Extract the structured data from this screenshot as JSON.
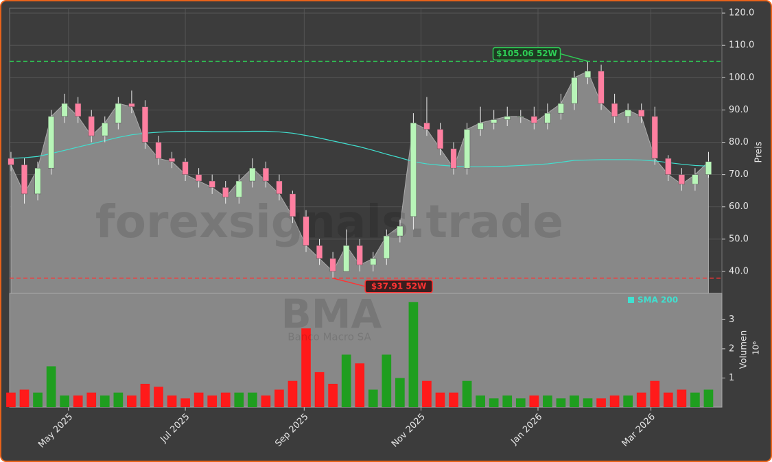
{
  "chart_data": [
    {
      "type": "candlestick",
      "watermark": "forexsignals.trade",
      "symbol": "BMA",
      "company": "Banco Macro SA",
      "y_label": "Preis",
      "x": [
        0,
        1,
        2,
        3,
        4,
        5,
        6,
        7,
        8,
        9,
        10,
        11,
        12,
        13,
        14,
        15,
        16,
        17,
        18,
        19,
        20,
        21,
        22,
        23,
        24,
        25,
        26,
        27,
        28,
        29,
        30,
        31,
        32,
        33,
        34,
        35,
        36,
        37,
        38,
        39,
        40,
        41,
        42,
        43,
        44,
        45,
        46,
        47,
        48,
        49,
        50,
        51,
        52
      ],
      "xlim": [
        -0.1,
        53.0
      ],
      "open": [
        75,
        73,
        64,
        72,
        88,
        92,
        88,
        82,
        86,
        92,
        91,
        80,
        75,
        74,
        70,
        68,
        66,
        63,
        68,
        72,
        68,
        64,
        57,
        48,
        44,
        40,
        48,
        42,
        44,
        51,
        57,
        86,
        84,
        78,
        72,
        84,
        86,
        87,
        88,
        88,
        86,
        89,
        92,
        100,
        102,
        92,
        88,
        90,
        88,
        75,
        70,
        67,
        70
      ],
      "high": [
        77,
        75,
        74,
        90,
        95,
        94,
        90,
        88,
        94,
        96,
        93,
        82,
        77,
        75,
        72,
        70,
        68,
        70,
        75,
        74,
        70,
        65,
        59,
        50,
        46,
        53,
        50,
        46,
        53,
        56,
        89,
        94,
        86,
        80,
        86,
        91,
        90,
        91,
        90,
        91,
        92,
        95,
        102,
        105.06,
        104,
        95,
        92,
        92,
        91,
        76,
        72,
        72,
        77
      ],
      "low": [
        71,
        61,
        62,
        70,
        86,
        86,
        80,
        80,
        84,
        89,
        78,
        73,
        72,
        68,
        66,
        64,
        61,
        61,
        66,
        66,
        62,
        55,
        46,
        42,
        37.91,
        40,
        40,
        40,
        42,
        49,
        53,
        82,
        76,
        70,
        70,
        82,
        84,
        85,
        86,
        84,
        84,
        87,
        90,
        98,
        90,
        86,
        86,
        86,
        73,
        68,
        65,
        65,
        69
      ],
      "close": [
        73,
        64,
        72,
        88,
        92,
        88,
        82,
        86,
        92,
        91,
        80,
        75,
        74,
        70,
        68,
        66,
        63,
        68,
        72,
        68,
        64,
        57,
        48,
        44,
        40,
        48,
        42,
        44,
        51,
        54,
        86,
        84,
        78,
        72,
        84,
        86,
        87,
        88,
        88,
        86,
        89,
        92,
        100,
        102,
        92,
        88,
        90,
        88,
        75,
        70,
        67,
        70,
        74
      ],
      "up_color": "#b8f5b8",
      "down_color": "#ff7fa0",
      "area_color": "#888888",
      "series": [
        {
          "name": "SMA 200",
          "color": "#40e0d0",
          "values": [
            75,
            75.2,
            75.6,
            76.5,
            77.5,
            78.5,
            79.5,
            80.5,
            81.5,
            82.3,
            82.8,
            83.1,
            83.3,
            83.4,
            83.4,
            83.3,
            83.3,
            83.3,
            83.4,
            83.4,
            83.2,
            82.8,
            82.1,
            81.3,
            80.4,
            79.5,
            78.6,
            77.5,
            76.3,
            75.2,
            74.0,
            73.3,
            72.9,
            72.6,
            72.4,
            72.4,
            72.5,
            72.6,
            72.8,
            73.0,
            73.3,
            73.8,
            74.4,
            74.5,
            74.6,
            74.6,
            74.6,
            74.5,
            74.2,
            73.7,
            73.2,
            72.8,
            72.6
          ]
        }
      ],
      "hlines": [
        {
          "value": 105.06,
          "label": "$105.06 52W",
          "color": "#2ecc55"
        },
        {
          "value": 37.91,
          "label": "$37.91 52W",
          "color": "#ff3333"
        }
      ],
      "ylim": [
        33.2,
        121.5
      ],
      "yticks": [
        {
          "value": 40,
          "label": "40.0"
        },
        {
          "value": 50,
          "label": "50.0"
        },
        {
          "value": 60,
          "label": "60.0"
        },
        {
          "value": 70,
          "label": "70.0"
        },
        {
          "value": 80,
          "label": "80.0"
        },
        {
          "value": 90,
          "label": "90.0"
        },
        {
          "value": 100,
          "label": "100.0"
        },
        {
          "value": 110,
          "label": "110.0"
        },
        {
          "value": 120,
          "label": "120.0"
        }
      ],
      "grid": true
    },
    {
      "type": "bar",
      "y_label": "Volumen",
      "multiplier": "10⁶",
      "x": [
        0,
        1,
        2,
        3,
        4,
        5,
        6,
        7,
        8,
        9,
        10,
        11,
        12,
        13,
        14,
        15,
        16,
        17,
        18,
        19,
        20,
        21,
        22,
        23,
        24,
        25,
        26,
        27,
        28,
        29,
        30,
        31,
        32,
        33,
        34,
        35,
        36,
        37,
        38,
        39,
        40,
        41,
        42,
        43,
        44,
        45,
        46,
        47,
        48,
        49,
        50,
        51,
        52
      ],
      "values": [
        0.5,
        0.6,
        0.5,
        1.4,
        0.4,
        0.4,
        0.5,
        0.4,
        0.5,
        0.4,
        0.8,
        0.7,
        0.4,
        0.3,
        0.5,
        0.4,
        0.5,
        0.5,
        0.5,
        0.4,
        0.6,
        0.9,
        2.7,
        1.2,
        0.8,
        1.8,
        1.5,
        0.6,
        1.8,
        1.0,
        3.6,
        0.9,
        0.5,
        0.5,
        0.9,
        0.4,
        0.3,
        0.4,
        0.3,
        0.4,
        0.4,
        0.3,
        0.4,
        0.3,
        0.3,
        0.4,
        0.4,
        0.5,
        0.9,
        0.5,
        0.6,
        0.5,
        0.6
      ],
      "up_color": "#1f9e1f",
      "down_color": "#ff1a1a",
      "xlim": [
        -0.1,
        53.0
      ],
      "xticks": [
        {
          "value": 4.29,
          "label": "May 2025"
        },
        {
          "value": 13.0,
          "label": "Jul 2025"
        },
        {
          "value": 21.86,
          "label": "Sep 2025"
        },
        {
          "value": 30.57,
          "label": "Nov 2025"
        },
        {
          "value": 39.29,
          "label": "Jan 2026"
        },
        {
          "value": 47.71,
          "label": "Mar 2026"
        }
      ],
      "ylim": [
        0,
        3.9
      ],
      "yticks": [
        1,
        2,
        3
      ],
      "grid": true
    }
  ]
}
